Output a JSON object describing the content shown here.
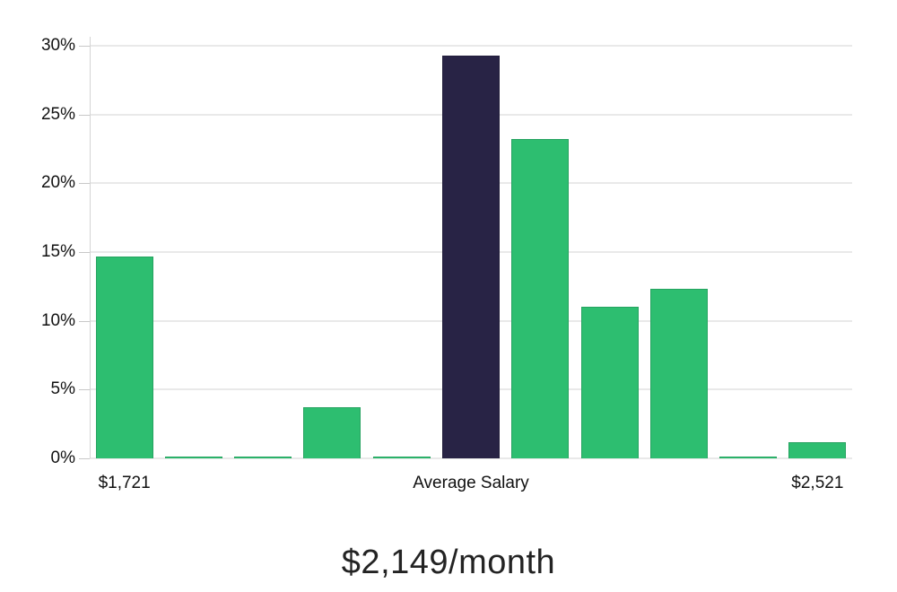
{
  "chart_data": {
    "type": "bar",
    "title": "$2,149/month",
    "subtitle": "",
    "xlabel": "",
    "ylabel": "",
    "unit": "%",
    "grid": true,
    "legend_position": "none",
    "ylim": [
      0,
      30
    ],
    "y_ticks": [
      {
        "value": 0,
        "label": "0%"
      },
      {
        "value": 5,
        "label": "5%"
      },
      {
        "value": 10,
        "label": "10%"
      },
      {
        "value": 15,
        "label": "15%"
      },
      {
        "value": 20,
        "label": "20%"
      },
      {
        "value": 25,
        "label": "25%"
      },
      {
        "value": 30,
        "label": "30%"
      }
    ],
    "x_axis_labels": [
      {
        "bin": 0,
        "text": "$1,721"
      },
      {
        "bin": 5,
        "text": "Average Salary"
      },
      {
        "bin": 10,
        "text": "$2,521"
      }
    ],
    "categories": [
      "bin-1",
      "bin-2",
      "bin-3",
      "bin-4",
      "bin-5",
      "bin-6-average-salary",
      "bin-7",
      "bin-8",
      "bin-9",
      "bin-10",
      "bin-11"
    ],
    "values": [
      14.7,
      0.1,
      0.1,
      3.7,
      0.1,
      29.3,
      23.2,
      11.0,
      12.3,
      0.1,
      1.2
    ],
    "highlight_bin": 5,
    "colors": {
      "bar": "#2dbe70",
      "highlight": "#282345",
      "gridline": "#e9e9e9",
      "axis": "#d4d4d4",
      "label": "#111111",
      "title": "#232323"
    }
  }
}
